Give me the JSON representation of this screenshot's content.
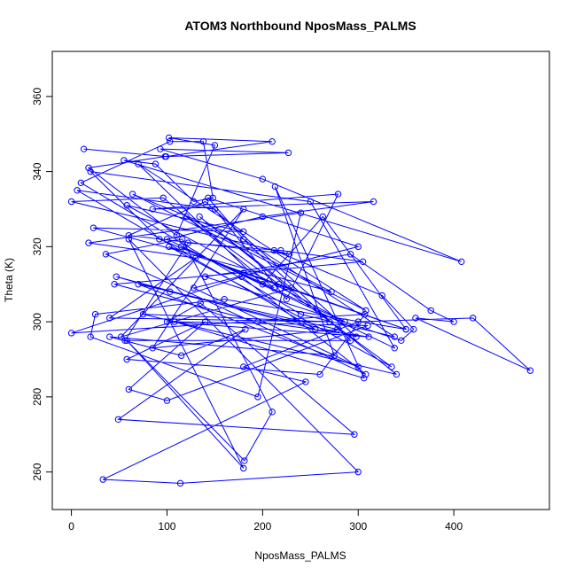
{
  "chart_data": {
    "type": "line",
    "title": "ATOM3 Northbound NposMass_PALMS",
    "xlabel": "NposMass_PALMS",
    "ylabel": "Theta (K)",
    "xlim": [
      -20,
      500
    ],
    "ylim": [
      250,
      372
    ],
    "xticks": [
      "0",
      "100",
      "200",
      "300",
      "400"
    ],
    "yticks": [
      "260",
      "280",
      "300",
      "320",
      "340",
      "360"
    ],
    "grid": false,
    "line_color": "#0000ff",
    "marker": "open-circle",
    "series": [
      {
        "points": [
          [
            13,
            346
          ],
          [
            99,
            344
          ],
          [
            210,
            348
          ],
          [
            102,
            349
          ],
          [
            150,
            347
          ],
          [
            110,
            323
          ],
          [
            18,
            341
          ],
          [
            98,
            344
          ],
          [
            227,
            345
          ],
          [
            93,
            346
          ],
          [
            200,
            338
          ],
          [
            408,
            316
          ],
          [
            55,
            343
          ],
          [
            88,
            342
          ],
          [
            128,
            332
          ],
          [
            148,
            333
          ],
          [
            138,
            348
          ],
          [
            103,
            348
          ],
          [
            10,
            337
          ],
          [
            240,
            302
          ],
          [
            338,
            296
          ],
          [
            180,
            322
          ],
          [
            64,
            334
          ],
          [
            308,
            303
          ],
          [
            70,
            342
          ],
          [
            200,
            310
          ],
          [
            263,
            328
          ],
          [
            350,
            298
          ],
          [
            180,
            313
          ],
          [
            92,
            322
          ],
          [
            20,
            340
          ],
          [
            250,
            332
          ],
          [
            338,
            293
          ],
          [
            100,
            322
          ],
          [
            200,
            328
          ],
          [
            316,
            332
          ],
          [
            85,
            330
          ],
          [
            279,
            334
          ],
          [
            225,
            306
          ],
          [
            150,
            330
          ],
          [
            6,
            335
          ],
          [
            255,
            298
          ],
          [
            47,
            312
          ],
          [
            103,
            308
          ],
          [
            298,
            296
          ],
          [
            140,
            332
          ],
          [
            60,
            323
          ],
          [
            228,
            318
          ],
          [
            0,
            332
          ],
          [
            96,
            333
          ],
          [
            212,
            309
          ],
          [
            115,
            320
          ],
          [
            286,
            300
          ],
          [
            58,
            331
          ],
          [
            180,
            324
          ],
          [
            23,
            325
          ],
          [
            272,
            308
          ],
          [
            120,
            328
          ],
          [
            335,
            288
          ],
          [
            102,
            320
          ],
          [
            217,
            310
          ],
          [
            350,
            298
          ],
          [
            160,
            306
          ],
          [
            25,
            302
          ],
          [
            20,
            296
          ],
          [
            195,
            280
          ],
          [
            240,
            329
          ],
          [
            18,
            321
          ],
          [
            130,
            317
          ],
          [
            40,
            301
          ],
          [
            270,
            300
          ],
          [
            75,
            302
          ],
          [
            340,
            286
          ],
          [
            134,
            328
          ],
          [
            230,
            309
          ],
          [
            52,
            296
          ],
          [
            180,
            330
          ],
          [
            85,
            293
          ],
          [
            278,
            298
          ],
          [
            70,
            310
          ],
          [
            300,
            288
          ],
          [
            128,
            309
          ],
          [
            300,
            320
          ],
          [
            143,
            333
          ],
          [
            180,
            322
          ],
          [
            292,
            295
          ],
          [
            56,
            295
          ],
          [
            122,
            321
          ],
          [
            219,
            319
          ],
          [
            305,
            316
          ],
          [
            45,
            310
          ],
          [
            195,
            300
          ],
          [
            311,
            296
          ],
          [
            100,
            300
          ],
          [
            135,
            305
          ],
          [
            296,
            270
          ],
          [
            49,
            274
          ],
          [
            182,
            298
          ],
          [
            115,
            291
          ],
          [
            40,
            296
          ],
          [
            275,
            291
          ],
          [
            213,
            336
          ],
          [
            306,
            285
          ],
          [
            108,
            300
          ],
          [
            310,
            299
          ],
          [
            100,
            279
          ],
          [
            60,
            282
          ],
          [
            140,
            300
          ],
          [
            58,
            290
          ],
          [
            260,
            286
          ],
          [
            307,
            302
          ],
          [
            0,
            297
          ],
          [
            178,
            312
          ],
          [
            308,
            286
          ],
          [
            36,
            318
          ],
          [
            116,
            322
          ],
          [
            210,
            276
          ],
          [
            181,
            263
          ],
          [
            58,
            295
          ],
          [
            180,
            261
          ],
          [
            60,
            322
          ],
          [
            300,
            260
          ],
          [
            114,
            257
          ],
          [
            33,
            258
          ],
          [
            245,
            284
          ],
          [
            180,
            288
          ],
          [
            300,
            300
          ],
          [
            420,
            301
          ],
          [
            480,
            287
          ],
          [
            360,
            301
          ],
          [
            400,
            300
          ],
          [
            376,
            303
          ],
          [
            292,
            318
          ],
          [
            140,
            312
          ],
          [
            345,
            295
          ],
          [
            358,
            298
          ],
          [
            325,
            307
          ],
          [
            212,
            319
          ]
        ]
      }
    ]
  }
}
